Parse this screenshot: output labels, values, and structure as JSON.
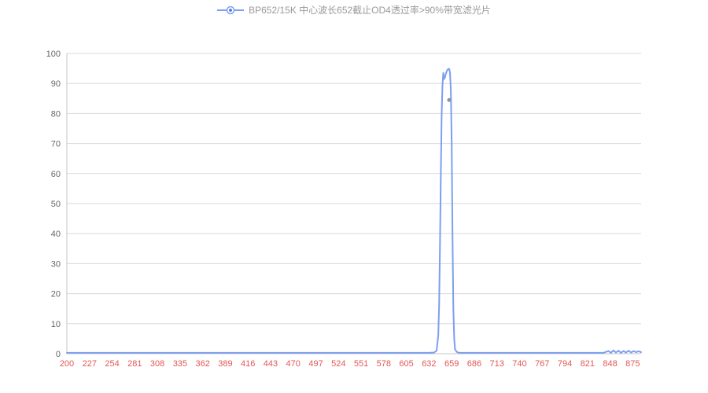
{
  "legend": {
    "label": "BP652/15K 中心波长652截止OD4透过率>90%带宽滤光片"
  },
  "colors": {
    "line": "#7d9ff0",
    "line_fill_dot": "#5b7fe0",
    "x_labels": "#e45656",
    "y_labels": "#666666",
    "grid": "#d9d9d9",
    "axis": "#c4c4c4",
    "legend_text": "#9a9a9a",
    "marker": "#8a93a6",
    "background": "#ffffff"
  },
  "chart_data": {
    "type": "line",
    "title": "BP652/15K 中心波长652截止OD4透过率>90%带宽滤光片",
    "xlabel": "",
    "ylabel": "",
    "xlim": [
      200,
      885
    ],
    "ylim": [
      0,
      100
    ],
    "x_tick_labels": [
      200,
      227,
      254,
      281,
      308,
      335,
      362,
      389,
      416,
      443,
      470,
      497,
      524,
      551,
      578,
      605,
      632,
      659,
      686,
      713,
      740,
      767,
      794,
      821,
      848,
      875
    ],
    "y_tick_labels": [
      0,
      10,
      20,
      30,
      40,
      50,
      60,
      70,
      80,
      90,
      100
    ],
    "grid": "horizontal",
    "legend_position": "top",
    "series": [
      {
        "name": "BP652/15K 中心波长652截止OD4透过率>90%带宽滤光片",
        "points": [
          [
            200,
            0.3
          ],
          [
            227,
            0.3
          ],
          [
            254,
            0.3
          ],
          [
            281,
            0.3
          ],
          [
            308,
            0.3
          ],
          [
            335,
            0.3
          ],
          [
            362,
            0.3
          ],
          [
            389,
            0.3
          ],
          [
            416,
            0.3
          ],
          [
            443,
            0.3
          ],
          [
            470,
            0.3
          ],
          [
            497,
            0.3
          ],
          [
            524,
            0.3
          ],
          [
            551,
            0.3
          ],
          [
            578,
            0.3
          ],
          [
            605,
            0.3
          ],
          [
            620,
            0.3
          ],
          [
            632,
            0.3
          ],
          [
            638,
            0.4
          ],
          [
            641,
            1
          ],
          [
            643,
            6
          ],
          [
            644,
            16
          ],
          [
            645,
            34
          ],
          [
            646,
            58
          ],
          [
            647,
            79
          ],
          [
            648,
            89
          ],
          [
            649,
            93.5
          ],
          [
            650,
            91.5
          ],
          [
            651,
            92
          ],
          [
            652,
            93.2
          ],
          [
            654,
            94.6
          ],
          [
            656,
            94.9
          ],
          [
            657,
            93.6
          ],
          [
            658,
            88
          ],
          [
            659,
            70
          ],
          [
            660,
            40
          ],
          [
            661,
            15
          ],
          [
            662,
            5
          ],
          [
            663,
            1.5
          ],
          [
            665,
            0.6
          ],
          [
            668,
            0.3
          ],
          [
            686,
            0.3
          ],
          [
            713,
            0.3
          ],
          [
            740,
            0.3
          ],
          [
            767,
            0.3
          ],
          [
            794,
            0.3
          ],
          [
            821,
            0.3
          ],
          [
            840,
            0.3
          ],
          [
            846,
            0.9
          ],
          [
            849,
            0.3
          ],
          [
            852,
            1.1
          ],
          [
            855,
            0.4
          ],
          [
            858,
            1.0
          ],
          [
            861,
            0.3
          ],
          [
            864,
            0.9
          ],
          [
            867,
            0.4
          ],
          [
            870,
            1.0
          ],
          [
            873,
            0.4
          ],
          [
            876,
            0.9
          ],
          [
            879,
            0.5
          ],
          [
            882,
            0.8
          ],
          [
            885,
            0.5
          ]
        ]
      }
    ],
    "marker_point": {
      "x": 656,
      "y": 84.5
    }
  }
}
